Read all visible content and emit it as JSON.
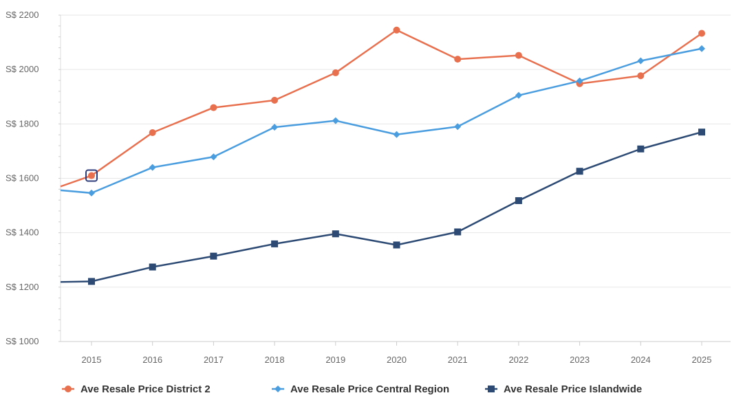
{
  "chart_data": {
    "type": "line",
    "title": "",
    "xlabel": "",
    "ylabel": "",
    "categories": [
      "2015",
      "2016",
      "2017",
      "2018",
      "2019",
      "2020",
      "2021",
      "2022",
      "2023",
      "2024",
      "2025"
    ],
    "y_ticks": [
      "S$ 1000",
      "S$ 1200",
      "S$ 1400",
      "S$ 1600",
      "S$ 1800",
      "S$ 2000",
      "S$ 2200"
    ],
    "y_tick_values": [
      1000,
      1200,
      1400,
      1600,
      1800,
      2000,
      2200
    ],
    "ylim": [
      1000,
      2200
    ],
    "grid": true,
    "legend_position": "bottom",
    "highlighted_point": {
      "series": 0,
      "category": "2015"
    },
    "series": [
      {
        "name": "Ave Resale Price District 2",
        "color": "#e8704f",
        "marker": "circle",
        "values": [
          1610,
          1768,
          1860,
          1887,
          1988,
          2145,
          2038,
          2052,
          1948,
          1977,
          2133
        ],
        "leading_value": 1570,
        "trailing_value": null
      },
      {
        "name": "Ave Resale Price Central Region",
        "color": "#4a9ddf",
        "marker": "diamond",
        "values": [
          1546,
          1640,
          1679,
          1788,
          1812,
          1761,
          1790,
          1905,
          1958,
          2032,
          2077
        ],
        "leading_value": 1556,
        "trailing_value": null
      },
      {
        "name": "Ave Resale Price Islandwide",
        "color": "#2c4a74",
        "marker": "square",
        "values": [
          1221,
          1274,
          1314,
          1359,
          1396,
          1355,
          1403,
          1518,
          1626,
          1708,
          1770
        ],
        "leading_value": 1219,
        "trailing_value": null
      }
    ]
  }
}
